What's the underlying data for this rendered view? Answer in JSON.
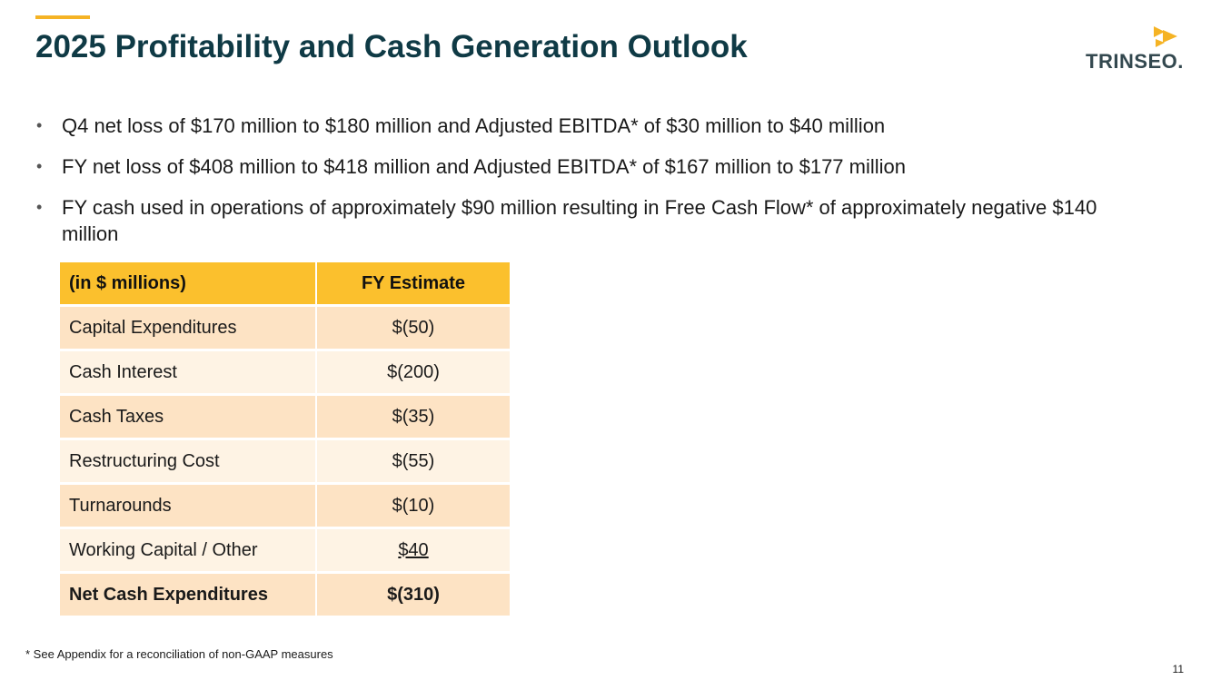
{
  "slide": {
    "title": "2025 Profitability and Cash Generation Outlook",
    "page_number": "11",
    "footnote": "* See Appendix for a reconciliation of non-GAAP measures"
  },
  "logo": {
    "text": "TRINSEO.",
    "icon": "trinseo-arrow-logo-icon"
  },
  "bullets": [
    "Q4 net loss of $170 million to $180 million and Adjusted EBITDA* of $30 million to $40 million",
    "FY net loss of $408 million to $418 million and Adjusted EBITDA* of $167 million to $177 million",
    "FY cash used in operations of approximately $90 million resulting in Free Cash Flow* of approximately negative $140 million"
  ],
  "table": {
    "headers": [
      "(in $ millions)",
      "FY Estimate"
    ],
    "rows": [
      {
        "label": "Capital Expenditures",
        "value": "$(50)"
      },
      {
        "label": "Cash Interest",
        "value": "$(200)"
      },
      {
        "label": "Cash Taxes",
        "value": "$(35)"
      },
      {
        "label": "Restructuring Cost",
        "value": "$(55)"
      },
      {
        "label": "Turnarounds",
        "value": "$(10)"
      },
      {
        "label": "Working Capital / Other",
        "value": "$40"
      },
      {
        "label": "Net Cash Expenditures",
        "value": "$(310)"
      }
    ]
  },
  "colors": {
    "title": "#0f3a45",
    "accent": "#f5b324",
    "table_header": "#fbc02d",
    "row_dark": "#fde3c4",
    "row_light": "#fef3e4"
  }
}
